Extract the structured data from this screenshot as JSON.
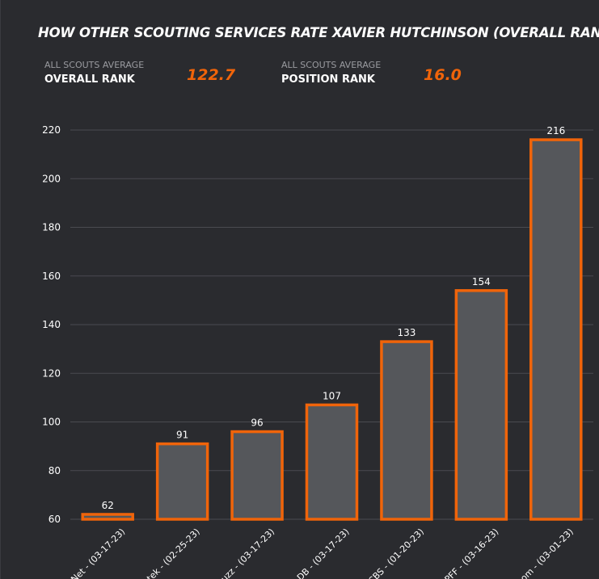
{
  "header": {
    "title": "HOW OTHER SCOUTING SERVICES RATE XAVIER HUTCHINSON (OVERALL RANK)"
  },
  "stats": [
    {
      "caption": "ALL SCOUTS AVERAGE",
      "label": "OVERALL RANK",
      "value": "122.7"
    },
    {
      "caption": "ALL SCOUTS AVERAGE",
      "label": "POSITION RANK",
      "value": "16.0"
    }
  ],
  "colors": {
    "background": "#2a2b2f",
    "bar_fill": "#55575b",
    "bar_outline": "#f0640a",
    "accent": "#f0640a",
    "grid": "#4a4b50"
  },
  "chart_data": {
    "type": "bar",
    "title": "HOW OTHER SCOUTING SERVICES RATE XAVIER HUTCHINSON (OVERALL RANK)",
    "xlabel": "",
    "ylabel": "",
    "ylim": [
      60,
      220
    ],
    "yticks": [
      60,
      80,
      100,
      120,
      140,
      160,
      180,
      200,
      220
    ],
    "grid": true,
    "categories": [
      "Net - (03-17-23)",
      "tek - (02-25-23)",
      "uzz - (03-17-23)",
      "DB - (03-17-23)",
      "CBS - (01-20-23)",
      "PFF - (03-16-23)",
      "om - (03-01-23)"
    ],
    "values": [
      62,
      91,
      96,
      107,
      133,
      154,
      216
    ]
  }
}
